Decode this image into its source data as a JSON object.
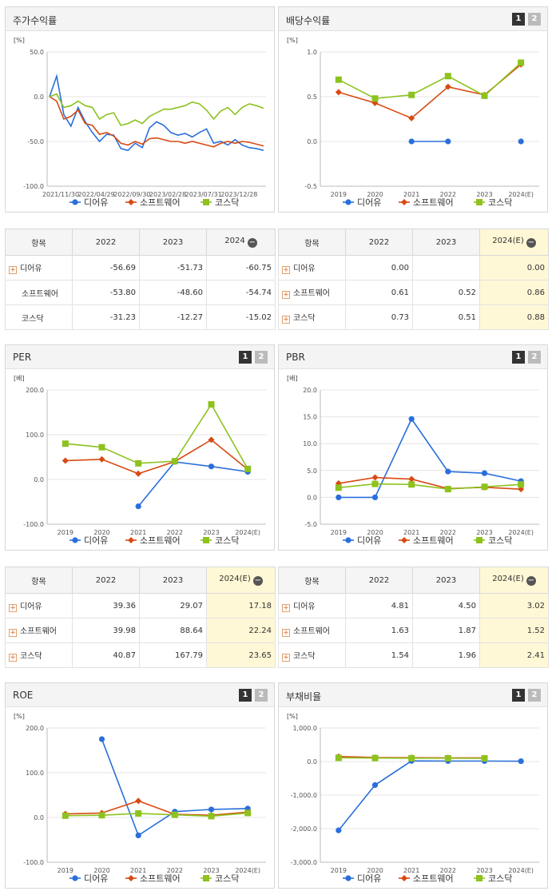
{
  "colors": {
    "s0": "#2a6fdb",
    "s1": "#d84a13",
    "s2": "#8dc21f"
  },
  "legend": [
    "디어유",
    "소프트웨어",
    "코스닥"
  ],
  "panels": [
    {
      "id": "stock-return",
      "title": "주가수익률",
      "pager": false,
      "unit": "[%]",
      "chart_data": {
        "type": "line",
        "ylim": [
          -100,
          50
        ],
        "ystep": 50,
        "yticks": [
          "50.0",
          "0.0",
          "-50.0",
          "-100.0"
        ],
        "xticks": [
          "2021/11/30",
          "2022/04/29",
          "2022/09/30",
          "2023/02/28",
          "2023/07/31",
          "2023/12/28"
        ],
        "xtick_pos": [
          0,
          5,
          10,
          15,
          20,
          25
        ],
        "xcount": 31,
        "series": [
          {
            "name": "디어유",
            "values": [
              0,
              23,
              -20,
              -33,
              -12,
              -28,
              -40,
              -50,
              -42,
              -43,
              -58,
              -60,
              -52,
              -57,
              -35,
              -28,
              -32,
              -40,
              -43,
              -41,
              -45,
              -40,
              -36,
              -52,
              -50,
              -54,
              -48,
              -54,
              -57,
              -58,
              -60
            ]
          },
          {
            "name": "소프트웨어",
            "values": [
              0,
              -5,
              -25,
              -22,
              -15,
              -30,
              -32,
              -42,
              -40,
              -44,
              -52,
              -54,
              -50,
              -53,
              -47,
              -46,
              -48,
              -50,
              -50,
              -52,
              -50,
              -52,
              -54,
              -56,
              -52,
              -50,
              -52,
              -50,
              -51,
              -53,
              -55
            ]
          },
          {
            "name": "코스닥",
            "values": [
              0,
              3,
              -12,
              -10,
              -5,
              -10,
              -12,
              -25,
              -20,
              -18,
              -32,
              -30,
              -26,
              -30,
              -22,
              -18,
              -14,
              -14,
              -12,
              -10,
              -6,
              -8,
              -15,
              -25,
              -16,
              -12,
              -20,
              -12,
              -8,
              -10,
              -13
            ]
          }
        ]
      }
    },
    {
      "id": "dividend-yield",
      "title": "배당수익률",
      "pager": true,
      "unit": "[%]",
      "chart_data": {
        "type": "line",
        "ylim": [
          -0.5,
          1.0
        ],
        "ystep": 0.5,
        "yticks": [
          "1.0",
          "0.5",
          "0.0",
          "-0.5"
        ],
        "categories": [
          "2019",
          "2020",
          "2021",
          "2022",
          "2023",
          "2024(E)"
        ],
        "series": [
          {
            "name": "디어유",
            "values": [
              null,
              null,
              0.0,
              0.0,
              null,
              0.0
            ]
          },
          {
            "name": "소프트웨어",
            "values": [
              0.55,
              0.43,
              0.26,
              0.61,
              0.52,
              0.86
            ]
          },
          {
            "name": "코스닥",
            "values": [
              0.69,
              0.48,
              0.52,
              0.73,
              0.51,
              0.88
            ]
          }
        ]
      }
    },
    {
      "id": "per",
      "title": "PER",
      "pager": true,
      "unit": "[배]",
      "chart_data": {
        "type": "line",
        "ylim": [
          -100,
          200
        ],
        "ystep": 100,
        "yticks": [
          "200.0",
          "100.0",
          "0.0",
          "-100.0"
        ],
        "categories": [
          "2019",
          "2020",
          "2021",
          "2022",
          "2023",
          "2024(E)"
        ],
        "series": [
          {
            "name": "디어유",
            "values": [
              null,
              null,
              -60,
              39.36,
              29.07,
              17.18
            ]
          },
          {
            "name": "소프트웨어",
            "values": [
              42,
              45,
              13,
              39.98,
              88.64,
              22.24
            ]
          },
          {
            "name": "코스닥",
            "values": [
              80,
              72,
              36,
              40.87,
              167.79,
              23.65
            ]
          }
        ]
      }
    },
    {
      "id": "pbr",
      "title": "PBR",
      "pager": true,
      "unit": "[배]",
      "chart_data": {
        "type": "line",
        "ylim": [
          -5,
          20
        ],
        "ystep": 5,
        "yticks": [
          "20.0",
          "15.0",
          "10.0",
          "5.0",
          "0.0",
          "-5.0"
        ],
        "categories": [
          "2019",
          "2020",
          "2021",
          "2022",
          "2023",
          "2024(E)"
        ],
        "series": [
          {
            "name": "디어유",
            "values": [
              0,
              0,
              14.6,
              4.81,
              4.5,
              3.02
            ]
          },
          {
            "name": "소프트웨어",
            "values": [
              2.6,
              3.7,
              3.4,
              1.63,
              1.87,
              1.52
            ]
          },
          {
            "name": "코스닥",
            "values": [
              1.8,
              2.5,
              2.4,
              1.54,
              1.96,
              2.41
            ]
          }
        ]
      }
    },
    {
      "id": "roe",
      "title": "ROE",
      "pager": true,
      "unit": "[%]",
      "chart_data": {
        "type": "line",
        "ylim": [
          -100,
          200
        ],
        "ystep": 100,
        "yticks": [
          "200.0",
          "100.0",
          "0.0",
          "-100.0"
        ],
        "categories": [
          "2019",
          "2020",
          "2021",
          "2022",
          "2023",
          "2024(E)"
        ],
        "series": [
          {
            "name": "디어유",
            "values": [
              null,
              175,
              -40,
              13,
              18,
              20
            ]
          },
          {
            "name": "소프트웨어",
            "values": [
              8,
              10,
              37,
              7,
              5,
              12
            ]
          },
          {
            "name": "코스닥",
            "values": [
              4,
              5,
              9,
              6,
              3,
              10
            ]
          }
        ]
      }
    },
    {
      "id": "debt-ratio",
      "title": "부채비율",
      "pager": true,
      "unit": "[%]",
      "chart_data": {
        "type": "line",
        "ylim": [
          -3000,
          1000
        ],
        "ystep": 1000,
        "yticks": [
          "1,000.0",
          "0.0",
          "-1,000.0",
          "-2,000.0",
          "-3,000.0"
        ],
        "categories": [
          "2019",
          "2020",
          "2021",
          "2022",
          "2023",
          "2024(E)"
        ],
        "series": [
          {
            "name": "디어유",
            "values": [
              -2050,
              -700,
              20,
              15,
              15,
              10
            ]
          },
          {
            "name": "소프트웨어",
            "values": [
              150,
              120,
              115,
              110,
              108,
              null
            ]
          },
          {
            "name": "코스닥",
            "values": [
              110,
              105,
              100,
              98,
              95,
              null
            ]
          }
        ]
      }
    }
  ],
  "tables": [
    {
      "id": "stock-return-table",
      "headers": [
        "항목",
        "2022",
        "2023",
        "2024"
      ],
      "header_minus": true,
      "highlight_last": false,
      "rows": [
        {
          "label": "디어유",
          "plus": true,
          "values": [
            "-56.69",
            "-51.73",
            "-60.75"
          ]
        },
        {
          "label": "소프트웨어",
          "plus": false,
          "values": [
            "-53.80",
            "-48.60",
            "-54.74"
          ]
        },
        {
          "label": "코스닥",
          "plus": false,
          "values": [
            "-31.23",
            "-12.27",
            "-15.02"
          ]
        }
      ]
    },
    {
      "id": "dividend-table",
      "headers": [
        "항목",
        "2022",
        "2023",
        "2024(E)"
      ],
      "header_minus": true,
      "highlight_last": true,
      "rows": [
        {
          "label": "디어유",
          "plus": true,
          "values": [
            "0.00",
            "",
            "0.00"
          ]
        },
        {
          "label": "소프트웨어",
          "plus": true,
          "values": [
            "0.61",
            "0.52",
            "0.86"
          ]
        },
        {
          "label": "코스닥",
          "plus": true,
          "values": [
            "0.73",
            "0.51",
            "0.88"
          ]
        }
      ]
    },
    {
      "id": "per-table",
      "headers": [
        "항목",
        "2022",
        "2023",
        "2024(E)"
      ],
      "header_minus": true,
      "highlight_last": true,
      "rows": [
        {
          "label": "디어유",
          "plus": true,
          "values": [
            "39.36",
            "29.07",
            "17.18"
          ]
        },
        {
          "label": "소프트웨어",
          "plus": true,
          "values": [
            "39.98",
            "88.64",
            "22.24"
          ]
        },
        {
          "label": "코스닥",
          "plus": true,
          "values": [
            "40.87",
            "167.79",
            "23.65"
          ]
        }
      ]
    },
    {
      "id": "pbr-table",
      "headers": [
        "항목",
        "2022",
        "2023",
        "2024(E)"
      ],
      "header_minus": true,
      "highlight_last": true,
      "rows": [
        {
          "label": "디어유",
          "plus": true,
          "values": [
            "4.81",
            "4.50",
            "3.02"
          ]
        },
        {
          "label": "소프트웨어",
          "plus": true,
          "values": [
            "1.63",
            "1.87",
            "1.52"
          ]
        },
        {
          "label": "코스닥",
          "plus": true,
          "values": [
            "1.54",
            "1.96",
            "2.41"
          ]
        }
      ]
    }
  ]
}
